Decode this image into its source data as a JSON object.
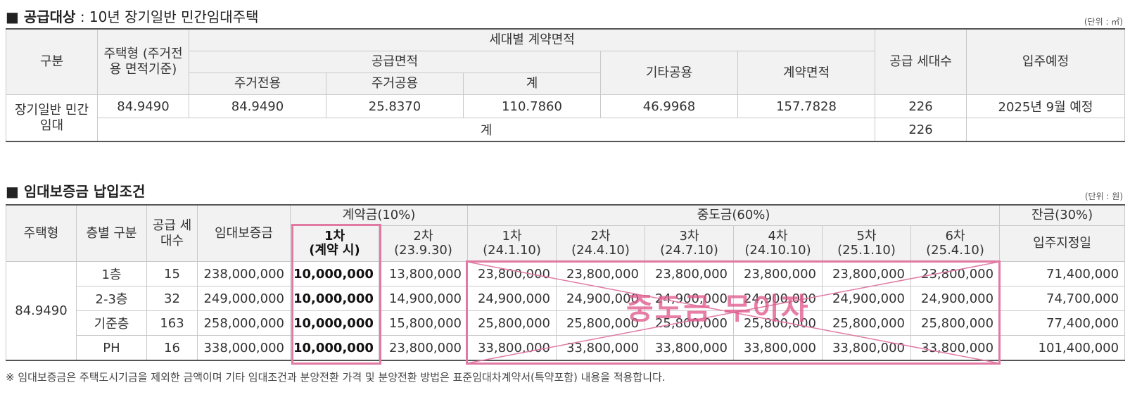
{
  "section1": {
    "title_bold": "■ 공급대상",
    "title_rest": " : 10년 장기일반 민간임대주택",
    "unit": "(단위 : ㎡)",
    "headers": {
      "gubun": "구분",
      "housing_type": "주택형\n(주거전용\n면적기준)",
      "contract_area_per_household": "세대별 계약면적",
      "supply_area": "공급면적",
      "residential_exclusive": "주거전용",
      "residential_common": "주거공용",
      "subtotal": "계",
      "other_common": "기타공용",
      "contract_area": "계약면적",
      "supply_households": "공급\n세대수",
      "move_in": "입주예정"
    },
    "row": {
      "category": "장기일반\n민간임대",
      "housing_type": "84.9490",
      "residential_exclusive": "84.9490",
      "residential_common": "25.8370",
      "subtotal": "110.7860",
      "other_common": "46.9968",
      "contract_area": "157.7828",
      "households": "226",
      "move_in": "2025년 9월 예정"
    },
    "total_row": {
      "label": "계",
      "households": "226"
    }
  },
  "section2": {
    "title": "■ 임대보증금 납입조건",
    "unit": "(단위 : 원)",
    "headers": {
      "housing_type": "주택형",
      "floor": "층별\n구분",
      "households": "공급\n세대수",
      "deposit": "임대보증금",
      "contract_fee": "계약금(10%)",
      "middle_payment": "중도금(60%)",
      "balance": "잔금(30%)",
      "c1": "1차\n(계약 시)",
      "c2": "2차\n(23.9.30)",
      "m1": "1차\n(24.1.10)",
      "m2": "2차\n(24.4.10)",
      "m3": "3차\n(24.7.10)",
      "m4": "4차\n(24.10.10)",
      "m5": "5차\n(25.1.10)",
      "m6": "6차\n(25.4.10)",
      "bal": "입주지정일"
    },
    "housing_type_value": "84.9490",
    "rows": [
      {
        "floor": "1층",
        "households": "15",
        "deposit": "238,000,000",
        "c1": "10,000,000",
        "c2": "13,800,000",
        "m": [
          "23,800,000",
          "23,800,000",
          "23,800,000",
          "23,800,000",
          "23,800,000",
          "23,800,000"
        ],
        "bal": "71,400,000"
      },
      {
        "floor": "2-3층",
        "households": "32",
        "deposit": "249,000,000",
        "c1": "10,000,000",
        "c2": "14,900,000",
        "m": [
          "24,900,000",
          "24,900,000",
          "24,900,000",
          "24,900,000",
          "24,900,000",
          "24,900,000"
        ],
        "bal": "74,700,000"
      },
      {
        "floor": "기준층",
        "households": "163",
        "deposit": "258,000,000",
        "c1": "10,000,000",
        "c2": "15,800,000",
        "m": [
          "25,800,000",
          "25,800,000",
          "25,800,000",
          "25,800,000",
          "25,800,000",
          "25,800,000"
        ],
        "bal": "77,400,000"
      },
      {
        "floor": "PH",
        "households": "16",
        "deposit": "338,000,000",
        "c1": "10,000,000",
        "c2": "23,800,000",
        "m": [
          "33,800,000",
          "33,800,000",
          "33,800,000",
          "33,800,000",
          "33,800,000",
          "33,800,000"
        ],
        "bal": "101,400,000"
      }
    ],
    "stamp_text": "중도금 무이자",
    "footnote": "※ 임대보증금은 주택도시기금을 제외한 금액이며 기타 임대조건과 분양전환 가격 및 분양전환 방법은 표준임대차계약서(특약포함) 내용을 적용합니다."
  },
  "colors": {
    "highlight": "#e07aa3",
    "header_bg": "#f2f2f2",
    "border": "#c9c9c9"
  }
}
